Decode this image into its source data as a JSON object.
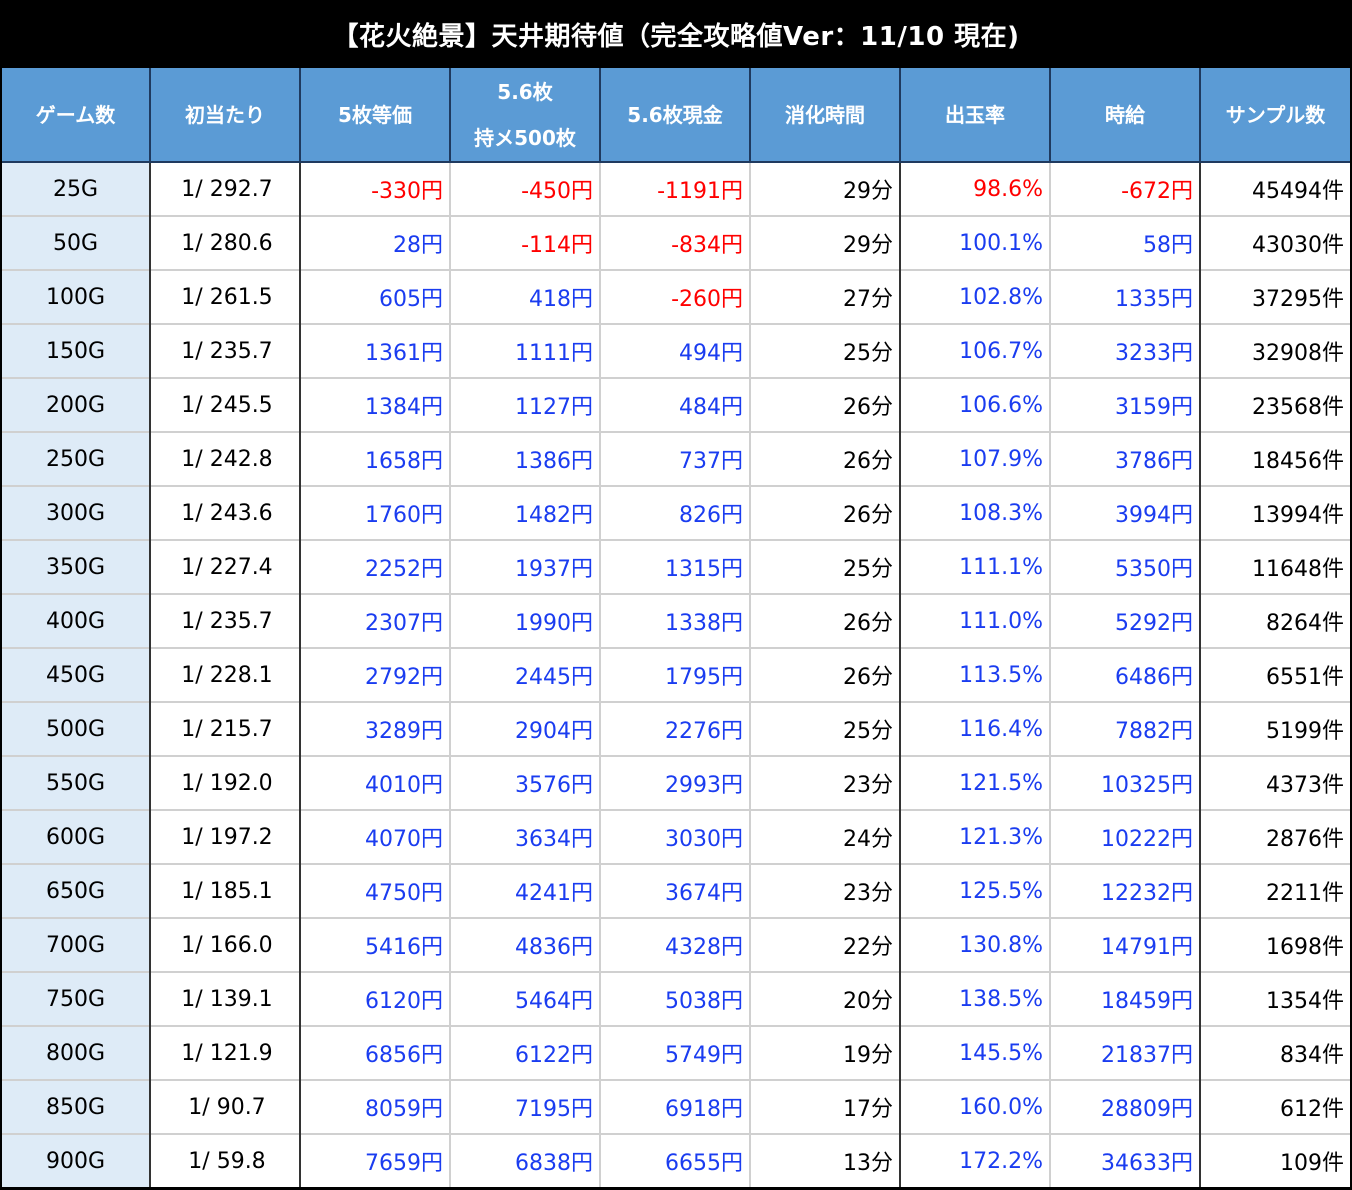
{
  "title": "【花火絶景】天井期待値（完全攻略値Ver：11/10 現在)",
  "colors": {
    "header_bg": "#5b9bd5",
    "first_col_bg": "#deebf7",
    "positive": "#1a3cf0",
    "negative": "#ff0000"
  },
  "chart_data": {
    "type": "table",
    "title": "【花火絶景】天井期待値（完全攻略値Ver：11/10 現在)",
    "columns": [
      "ゲーム数",
      "初当たり",
      "5枚等価",
      "5.6枚 持メ500枚",
      "5.6枚現金",
      "消化時間",
      "出玉率",
      "時給",
      "サンプル数"
    ],
    "header_lines": [
      [
        "ゲーム数"
      ],
      [
        "初当たり"
      ],
      [
        "5枚等価"
      ],
      [
        "5.6枚",
        "持メ500枚"
      ],
      [
        "5.6枚現金"
      ],
      [
        "消化時間"
      ],
      [
        "出玉率"
      ],
      [
        "時給"
      ],
      [
        "サンプル数"
      ]
    ],
    "rows": [
      [
        "25G",
        "1/ 292.7",
        "-330円",
        "-450円",
        "-1191円",
        "29分",
        "98.6%",
        "-672円",
        "45494件"
      ],
      [
        "50G",
        "1/ 280.6",
        "28円",
        "-114円",
        "-834円",
        "29分",
        "100.1%",
        "58円",
        "43030件"
      ],
      [
        "100G",
        "1/ 261.5",
        "605円",
        "418円",
        "-260円",
        "27分",
        "102.8%",
        "1335円",
        "37295件"
      ],
      [
        "150G",
        "1/ 235.7",
        "1361円",
        "1111円",
        "494円",
        "25分",
        "106.7%",
        "3233円",
        "32908件"
      ],
      [
        "200G",
        "1/ 245.5",
        "1384円",
        "1127円",
        "484円",
        "26分",
        "106.6%",
        "3159円",
        "23568件"
      ],
      [
        "250G",
        "1/ 242.8",
        "1658円",
        "1386円",
        "737円",
        "26分",
        "107.9%",
        "3786円",
        "18456件"
      ],
      [
        "300G",
        "1/ 243.6",
        "1760円",
        "1482円",
        "826円",
        "26分",
        "108.3%",
        "3994円",
        "13994件"
      ],
      [
        "350G",
        "1/ 227.4",
        "2252円",
        "1937円",
        "1315円",
        "25分",
        "111.1%",
        "5350円",
        "11648件"
      ],
      [
        "400G",
        "1/ 235.7",
        "2307円",
        "1990円",
        "1338円",
        "26分",
        "111.0%",
        "5292円",
        "8264件"
      ],
      [
        "450G",
        "1/ 228.1",
        "2792円",
        "2445円",
        "1795円",
        "26分",
        "113.5%",
        "6486円",
        "6551件"
      ],
      [
        "500G",
        "1/ 215.7",
        "3289円",
        "2904円",
        "2276円",
        "25分",
        "116.4%",
        "7882円",
        "5199件"
      ],
      [
        "550G",
        "1/ 192.0",
        "4010円",
        "3576円",
        "2993円",
        "23分",
        "121.5%",
        "10325円",
        "4373件"
      ],
      [
        "600G",
        "1/ 197.2",
        "4070円",
        "3634円",
        "3030円",
        "24分",
        "121.3%",
        "10222円",
        "2876件"
      ],
      [
        "650G",
        "1/ 185.1",
        "4750円",
        "4241円",
        "3674円",
        "23分",
        "125.5%",
        "12232円",
        "2211件"
      ],
      [
        "700G",
        "1/ 166.0",
        "5416円",
        "4836円",
        "4328円",
        "22分",
        "130.8%",
        "14791円",
        "1698件"
      ],
      [
        "750G",
        "1/ 139.1",
        "6120円",
        "5464円",
        "5038円",
        "20分",
        "138.5%",
        "18459円",
        "1354件"
      ],
      [
        "800G",
        "1/ 121.9",
        "6856円",
        "6122円",
        "5749円",
        "19分",
        "145.5%",
        "21837円",
        "834件"
      ],
      [
        "850G",
        "1/ 90.7",
        "8059円",
        "7195円",
        "6918円",
        "17分",
        "160.0%",
        "28809円",
        "612件"
      ],
      [
        "900G",
        "1/ 59.8",
        "7659円",
        "6838円",
        "6655円",
        "13分",
        "172.2%",
        "34633円",
        "109件"
      ]
    ]
  }
}
